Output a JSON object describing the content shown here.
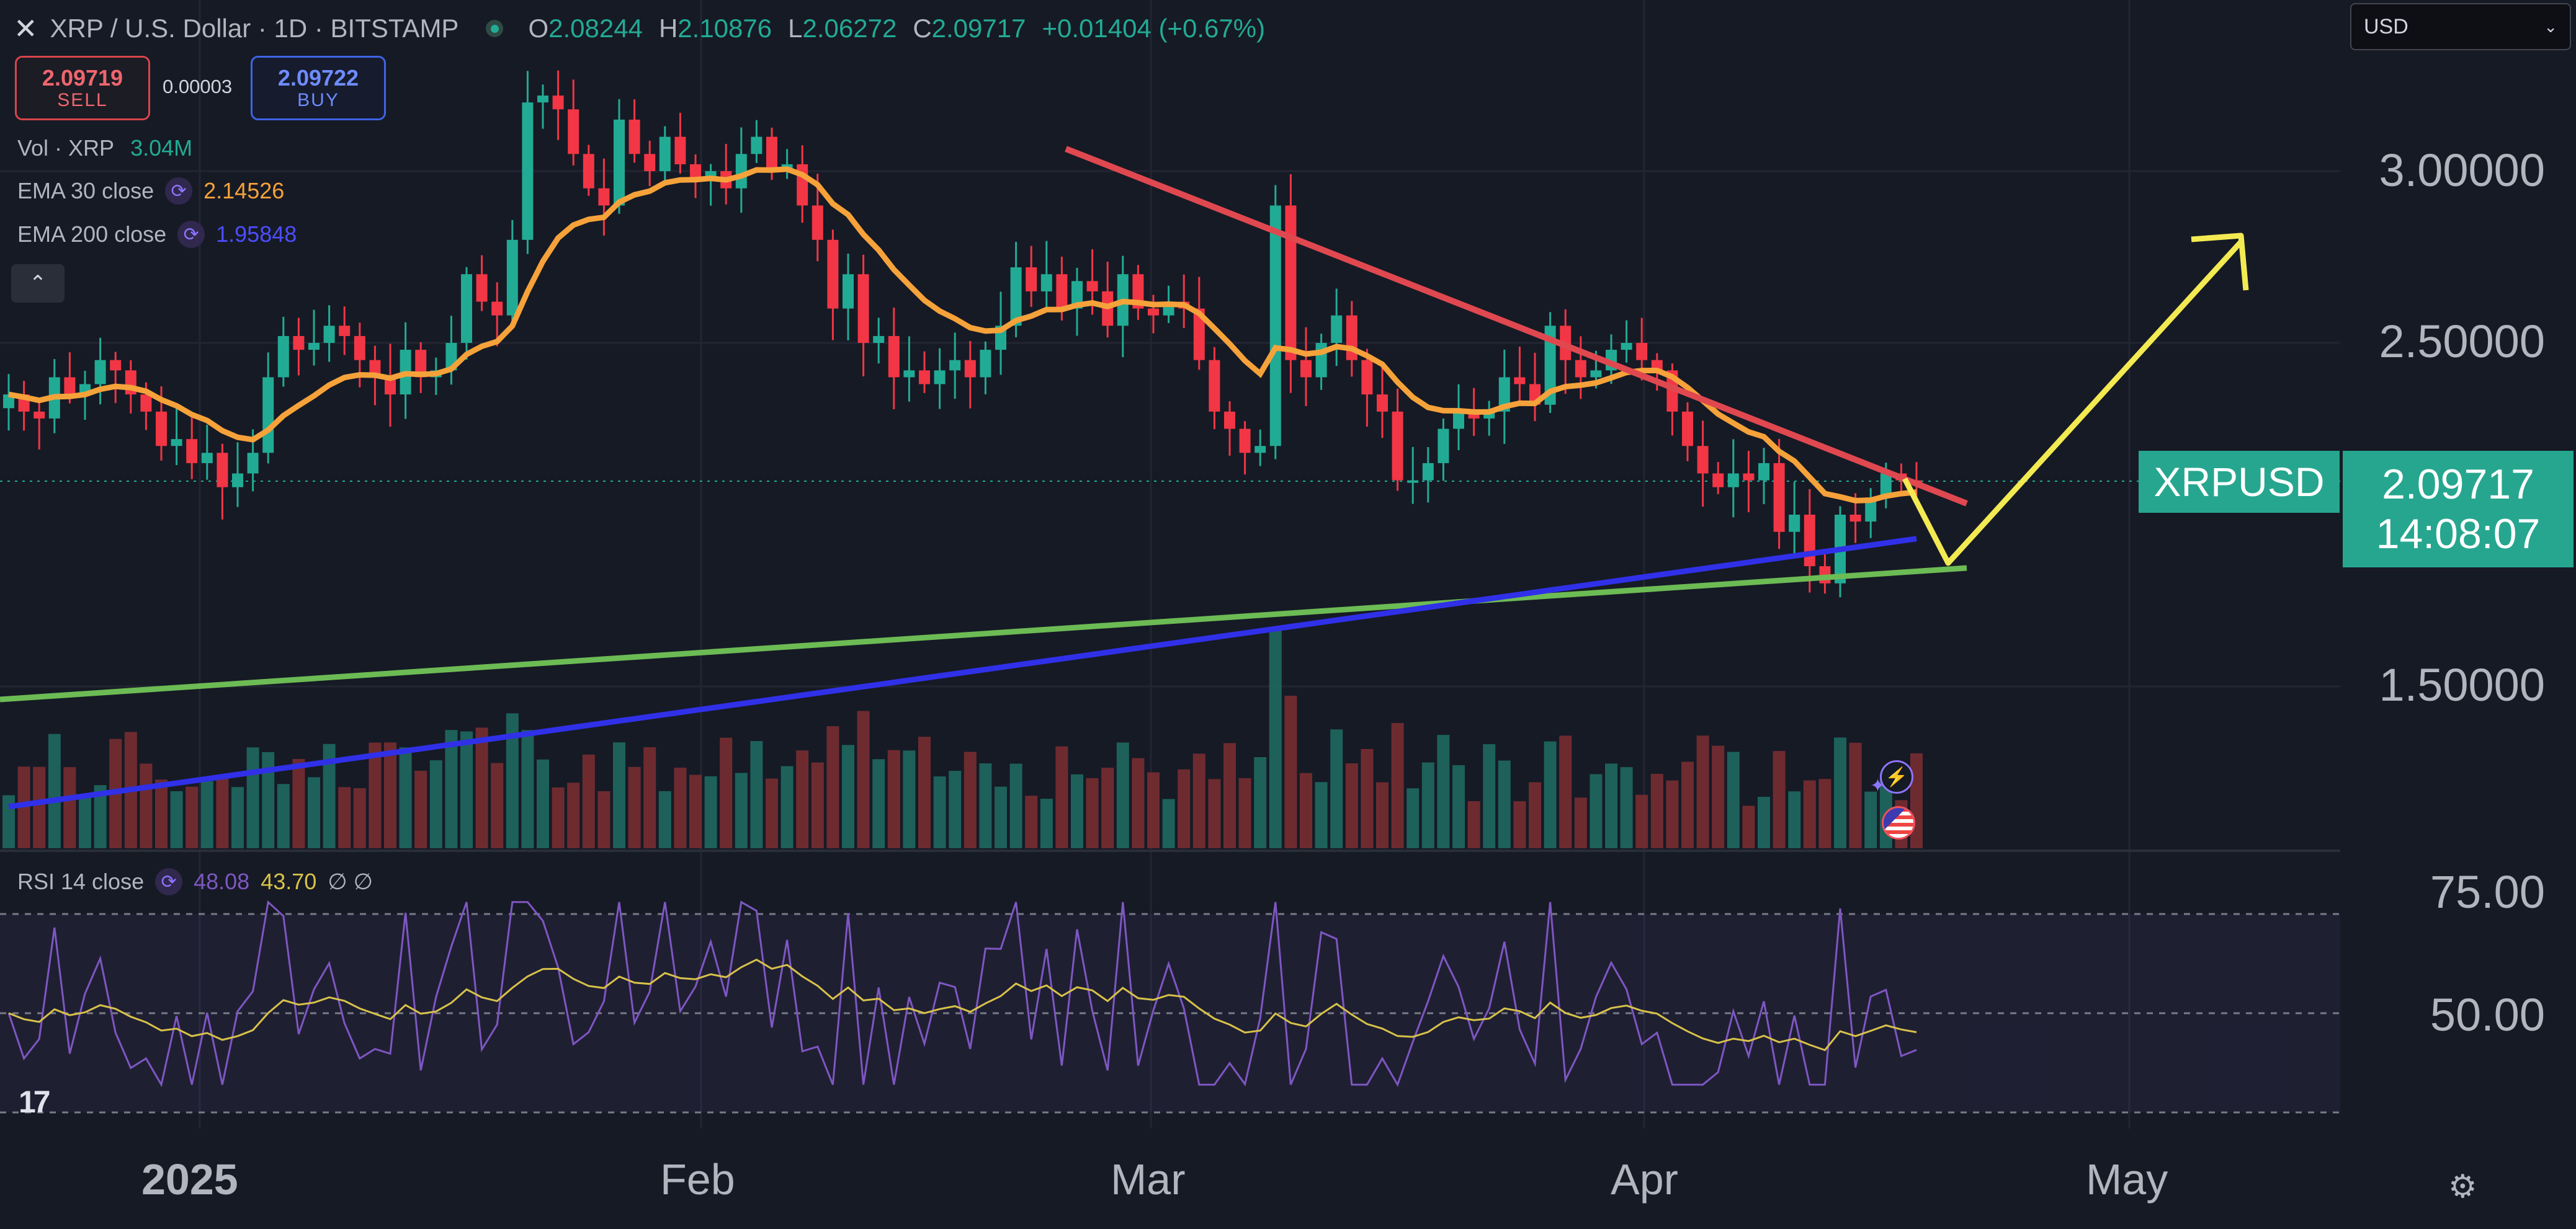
{
  "header": {
    "close_icon": "close-icon",
    "symbol_title": "XRP / U.S. Dollar · 1D · BITSTAMP",
    "market_status": "open",
    "ohlc": [
      {
        "key": "O",
        "value": "2.08244"
      },
      {
        "key": "H",
        "value": "2.10876"
      },
      {
        "key": "L",
        "value": "2.06272"
      },
      {
        "key": "C",
        "value": "2.09717"
      }
    ],
    "change": "+0.01404 (+0.67%)"
  },
  "trade": {
    "sell_price": "2.09719",
    "sell_label": "SELL",
    "spread": "0.00003",
    "buy_price": "2.09722",
    "buy_label": "BUY"
  },
  "indicators": {
    "volume": {
      "label": "Vol · XRP",
      "value": "3.04M"
    },
    "ema30": {
      "label": "EMA 30 close",
      "value": "2.14526"
    },
    "ema200": {
      "label": "EMA 200 close",
      "value": "1.95848"
    },
    "collapse_icon": "chevron-up-icon"
  },
  "currency_select": {
    "value": "USD"
  },
  "price_axis": {
    "labels": [
      "3.00000",
      "2.50000",
      "1.50000"
    ]
  },
  "last_price": {
    "ticker": "XRPUSD",
    "price": "2.09717",
    "countdown": "14:08:07"
  },
  "rsi": {
    "label": "RSI 14 close",
    "value": "48.08",
    "ma_value": "43.70",
    "extra": "∅ ∅",
    "axis_labels": [
      "75.00",
      "50.00"
    ]
  },
  "time_axis": {
    "labels": [
      "2025",
      "Feb",
      "Mar",
      "Apr",
      "May"
    ]
  },
  "colors": {
    "up": "#22ab94",
    "down": "#f23645",
    "ema30": "#f6a23a",
    "ema200": "#3030e8",
    "resistance": "#e04850",
    "support": "#6cbb54",
    "projection": "#f3ea52",
    "rsi": "#7e57c2",
    "rsi_ma": "#d8c24a"
  },
  "chart_data": {
    "type": "candlestick",
    "timeframe": "1D",
    "x_labels": [
      "2025",
      "Feb",
      "Mar",
      "Apr",
      "May"
    ],
    "ylim": [
      1.3,
      3.3
    ],
    "close_series": [
      2.35,
      2.3,
      2.28,
      2.4,
      2.35,
      2.38,
      2.45,
      2.42,
      2.35,
      2.3,
      2.2,
      2.22,
      2.15,
      2.18,
      2.08,
      2.12,
      2.18,
      2.4,
      2.52,
      2.48,
      2.5,
      2.55,
      2.52,
      2.45,
      2.4,
      2.35,
      2.48,
      2.4,
      2.42,
      2.5,
      2.7,
      2.62,
      2.58,
      2.8,
      3.2,
      3.22,
      3.18,
      3.05,
      2.95,
      2.9,
      3.15,
      3.05,
      3.0,
      3.1,
      3.02,
      2.98,
      3.0,
      2.95,
      3.05,
      3.1,
      3.0,
      3.02,
      2.9,
      2.8,
      2.6,
      2.7,
      2.5,
      2.52,
      2.4,
      2.42,
      2.38,
      2.42,
      2.45,
      2.4,
      2.48,
      2.55,
      2.72,
      2.65,
      2.7,
      2.6,
      2.68,
      2.65,
      2.55,
      2.7,
      2.6,
      2.58,
      2.62,
      2.6,
      2.45,
      2.3,
      2.25,
      2.18,
      2.2,
      2.9,
      2.45,
      2.4,
      2.5,
      2.58,
      2.45,
      2.35,
      2.3,
      2.1,
      2.1,
      2.15,
      2.25,
      2.3,
      2.28,
      2.3,
      2.4,
      2.38,
      2.32,
      2.55,
      2.45,
      2.4,
      2.42,
      2.48,
      2.5,
      2.45,
      2.42,
      2.3,
      2.2,
      2.12,
      2.08,
      2.12,
      2.1,
      2.15,
      1.95,
      2.0,
      1.85,
      1.8,
      2.0,
      1.98,
      2.05,
      2.12,
      2.1,
      2.09
    ],
    "indicators": {
      "ema30_last": 2.14526,
      "ema200_last": 1.95848,
      "volume_last": "3.04M",
      "rsi_last": 48.08,
      "rsi_ma_last": 43.7
    },
    "annotations": [
      "descending resistance trendline",
      "ascending support trendline",
      "projected dip then breakout arrow"
    ]
  }
}
